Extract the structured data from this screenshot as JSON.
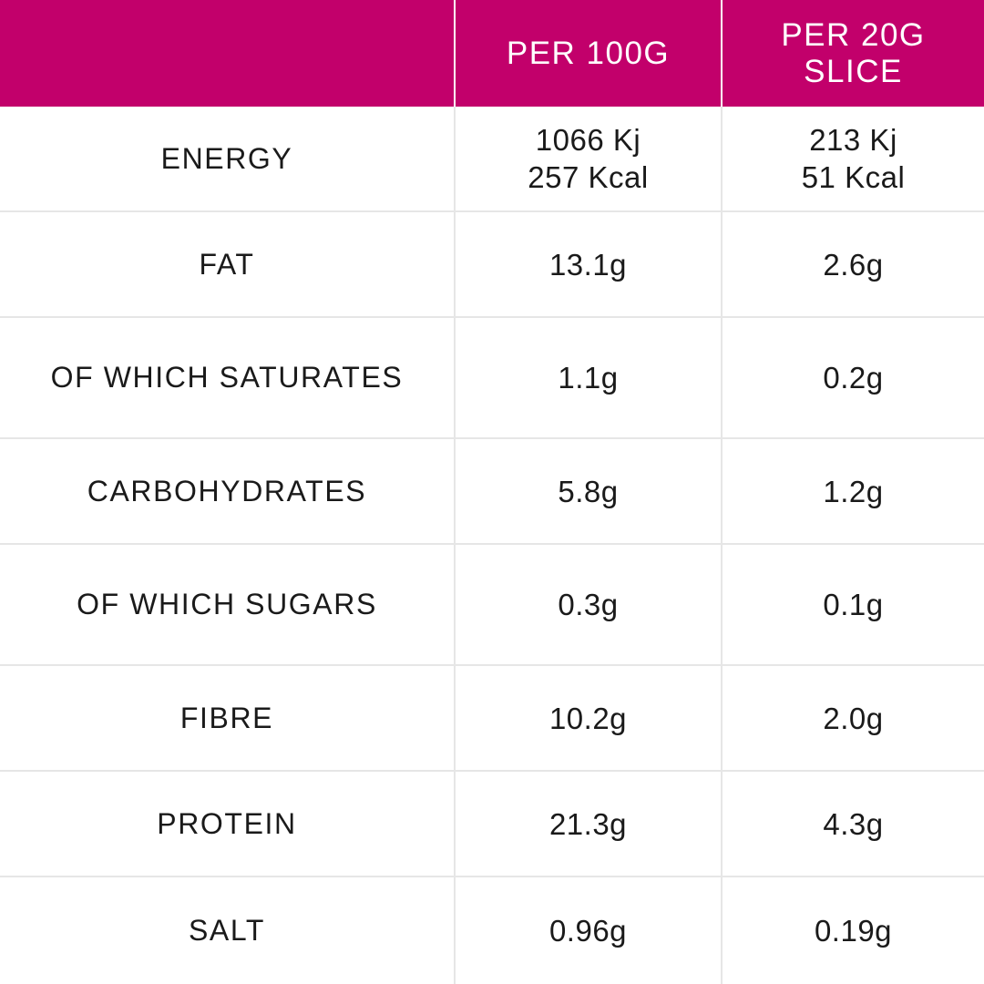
{
  "colors": {
    "header_bg": "#c2006b",
    "header_text": "#ffffff",
    "grid": "#e6e6e6"
  },
  "header": {
    "col_per100": "PER 100G",
    "col_per_slice_line1": "PER 20G",
    "col_per_slice_line2": "SLICE"
  },
  "rows": [
    {
      "label": "ENERGY",
      "per100_line1": "1066 Kj",
      "per100_line2": "257 Kcal",
      "slice_line1": "213 Kj",
      "slice_line2": "51 Kcal"
    },
    {
      "label": "FAT",
      "per100": "13.1g",
      "slice": "2.6g"
    },
    {
      "label": "OF WHICH SATURATES",
      "per100": "1.1g",
      "slice": "0.2g"
    },
    {
      "label": "CARBOHYDRATES",
      "per100": "5.8g",
      "slice": "1.2g"
    },
    {
      "label": "OF WHICH SUGARS",
      "per100": "0.3g",
      "slice": "0.1g"
    },
    {
      "label": "FIBRE",
      "per100": "10.2g",
      "slice": "2.0g"
    },
    {
      "label": "PROTEIN",
      "per100": "21.3g",
      "slice": "4.3g"
    },
    {
      "label": "SALT",
      "per100": "0.96g",
      "slice": "0.19g"
    }
  ]
}
